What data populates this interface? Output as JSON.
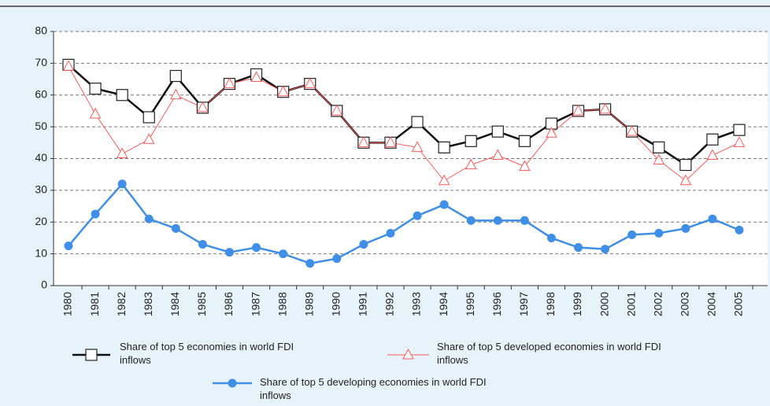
{
  "chart_data": {
    "type": "line",
    "categories": [
      "1980",
      "1981",
      "1982",
      "1983",
      "1984",
      "1985",
      "1986",
      "1987",
      "1988",
      "1989",
      "1990",
      "1991",
      "1992",
      "1993",
      "1994",
      "1995",
      "1996",
      "1997",
      "1998",
      "1999",
      "2000",
      "2001",
      "2002",
      "2003",
      "2004",
      "2005"
    ],
    "series": [
      {
        "name": "Share of top 5 economies in world FDI inflows",
        "color": "#111111",
        "marker": "square",
        "values": [
          69.5,
          62,
          60,
          53,
          66,
          56,
          63.5,
          66.5,
          61,
          63.5,
          55,
          45,
          45,
          51.5,
          43.5,
          45.5,
          48.5,
          45.5,
          51,
          55,
          55.5,
          48.5,
          43.5,
          38,
          46,
          49
        ]
      },
      {
        "name": "Share of top 5 developed economies in world FDI inflows",
        "color": "#ff5a5a",
        "marker": "triangle",
        "values": [
          69,
          54,
          41.5,
          46,
          60,
          56,
          63.5,
          65.5,
          61,
          63.5,
          55,
          45,
          45,
          43.5,
          33,
          38,
          41,
          37.5,
          48,
          55,
          55.5,
          48.5,
          39.5,
          33,
          41,
          45
        ]
      },
      {
        "name": "Share of top 5 developing economies in world FDI inflows",
        "color": "#3f8fe8",
        "marker": "circle",
        "values": [
          12.5,
          22.5,
          32,
          21,
          18,
          13,
          10.5,
          12,
          10,
          7,
          8.5,
          13,
          16.5,
          22,
          25.5,
          20.5,
          20.5,
          20.5,
          15,
          12,
          11.5,
          16,
          16.5,
          18,
          21,
          17.5
        ]
      }
    ],
    "ylim": [
      0,
      80
    ],
    "yticks": [
      0,
      10,
      20,
      30,
      40,
      50,
      60,
      70,
      80
    ],
    "grid": true
  }
}
